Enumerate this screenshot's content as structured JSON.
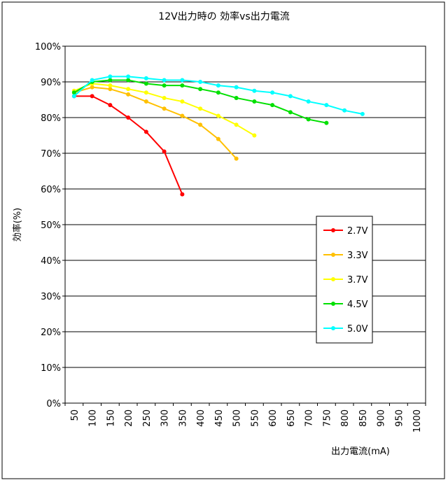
{
  "chart_data": {
    "type": "line",
    "title": "12V出力時の 効率vs出力電流",
    "xlabel": "出力電流(mA)",
    "ylabel": "効率(%)",
    "categories": [
      "50",
      "100",
      "150",
      "200",
      "250",
      "300",
      "350",
      "400",
      "450",
      "500",
      "550",
      "600",
      "650",
      "700",
      "750",
      "800",
      "850",
      "900",
      "950",
      "1000"
    ],
    "y_ticks": [
      "0%",
      "10%",
      "20%",
      "30%",
      "40%",
      "50%",
      "60%",
      "70%",
      "80%",
      "90%",
      "100%"
    ],
    "ylim": [
      0,
      100
    ],
    "grid": "horizontal",
    "legend_position": "right",
    "series": [
      {
        "name": "2.7V",
        "color": "#ff0000",
        "x": [
          50,
          100,
          150,
          200,
          250,
          300,
          350
        ],
        "values": [
          86,
          86,
          83.5,
          80,
          76,
          70.5,
          58.5
        ]
      },
      {
        "name": "3.3V",
        "color": "#ffc000",
        "x": [
          50,
          100,
          150,
          200,
          250,
          300,
          350,
          400,
          450,
          500
        ],
        "values": [
          87,
          88.5,
          88,
          86.5,
          84.5,
          82.5,
          80.5,
          78,
          74,
          68.5
        ]
      },
      {
        "name": "3.7V",
        "color": "#ffff00",
        "x": [
          50,
          100,
          150,
          200,
          250,
          300,
          350,
          400,
          450,
          500,
          550
        ],
        "values": [
          87.5,
          89.5,
          89,
          88,
          87,
          85.5,
          84.5,
          82.5,
          80.5,
          78,
          75
        ]
      },
      {
        "name": "4.5V",
        "color": "#00e000",
        "x": [
          50,
          100,
          150,
          200,
          250,
          300,
          350,
          400,
          450,
          500,
          550,
          600,
          650,
          700,
          750
        ],
        "values": [
          87,
          90,
          90.5,
          90.5,
          89.5,
          89,
          89,
          88,
          87,
          85.5,
          84.5,
          83.5,
          81.5,
          79.5,
          78.5
        ]
      },
      {
        "name": "5.0V",
        "color": "#00ffff",
        "x": [
          50,
          100,
          150,
          200,
          250,
          300,
          350,
          400,
          450,
          500,
          550,
          600,
          650,
          700,
          750,
          800,
          850
        ],
        "values": [
          86,
          90.5,
          91.5,
          91.5,
          91,
          90.5,
          90.5,
          90,
          89,
          88.5,
          87.5,
          87,
          86,
          84.5,
          83.5,
          82,
          81
        ]
      }
    ]
  }
}
